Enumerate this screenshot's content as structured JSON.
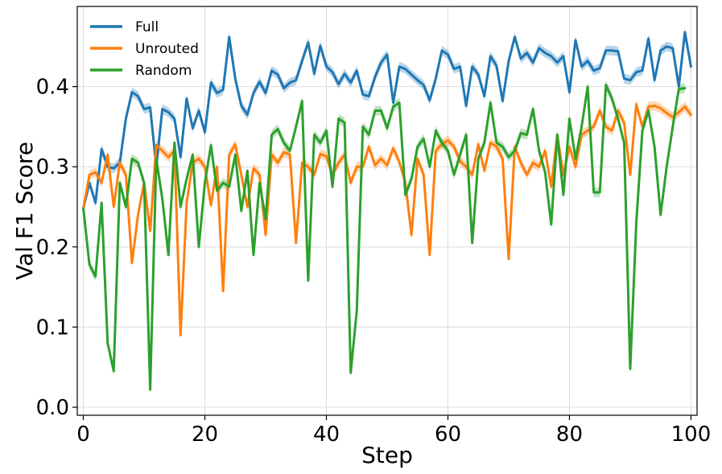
{
  "chart_data": {
    "type": "line",
    "title": "",
    "xlabel": "Step",
    "ylabel": "Val F1 Score",
    "xlim": [
      -1,
      101
    ],
    "ylim": [
      -0.01,
      0.5
    ],
    "x_ticks": [
      0,
      20,
      40,
      60,
      80,
      100
    ],
    "x_tick_labels": [
      "0",
      "20",
      "40",
      "60",
      "80",
      "100"
    ],
    "y_ticks": [
      0.0,
      0.1,
      0.2,
      0.3,
      0.4
    ],
    "y_tick_labels": [
      "0.0",
      "0.1",
      "0.2",
      "0.3",
      "0.4"
    ],
    "grid": true,
    "legend_position": "top-left",
    "band_half_width": 0.006,
    "series": [
      {
        "name": "Full",
        "color": "#1f77b4",
        "values": [
          0.248,
          0.28,
          0.255,
          0.322,
          0.3,
          0.298,
          0.305,
          0.36,
          0.393,
          0.388,
          0.372,
          0.374,
          0.3,
          0.372,
          0.368,
          0.36,
          0.312,
          0.385,
          0.348,
          0.37,
          0.343,
          0.405,
          0.392,
          0.396,
          0.462,
          0.41,
          0.376,
          0.365,
          0.392,
          0.406,
          0.392,
          0.42,
          0.415,
          0.398,
          0.405,
          0.408,
          0.432,
          0.455,
          0.416,
          0.451,
          0.425,
          0.418,
          0.403,
          0.416,
          0.405,
          0.42,
          0.39,
          0.388,
          0.412,
          0.43,
          0.44,
          0.38,
          0.425,
          0.422,
          0.415,
          0.408,
          0.402,
          0.383,
          0.41,
          0.445,
          0.44,
          0.422,
          0.425,
          0.376,
          0.425,
          0.415,
          0.388,
          0.438,
          0.426,
          0.382,
          0.432,
          0.462,
          0.435,
          0.442,
          0.43,
          0.448,
          0.442,
          0.438,
          0.43,
          0.438,
          0.393,
          0.458,
          0.425,
          0.432,
          0.42,
          0.423,
          0.445,
          0.445,
          0.444,
          0.41,
          0.408,
          0.418,
          0.42,
          0.46,
          0.408,
          0.445,
          0.45,
          0.448,
          0.4,
          0.468,
          0.425
        ]
      },
      {
        "name": "Unrouted",
        "color": "#ff7f0e",
        "values": [
          0.248,
          0.29,
          0.293,
          0.28,
          0.315,
          0.25,
          0.305,
          0.29,
          0.18,
          0.24,
          0.28,
          0.22,
          0.327,
          0.32,
          0.312,
          0.32,
          0.09,
          0.255,
          0.305,
          0.31,
          0.3,
          0.252,
          0.3,
          0.145,
          0.315,
          0.328,
          0.29,
          0.25,
          0.298,
          0.29,
          0.215,
          0.315,
          0.305,
          0.318,
          0.315,
          0.205,
          0.305,
          0.3,
          0.29,
          0.316,
          0.313,
          0.29,
          0.305,
          0.315,
          0.28,
          0.3,
          0.3,
          0.325,
          0.302,
          0.31,
          0.302,
          0.323,
          0.306,
          0.28,
          0.215,
          0.31,
          0.29,
          0.19,
          0.32,
          0.328,
          0.333,
          0.325,
          0.307,
          0.3,
          0.29,
          0.328,
          0.295,
          0.33,
          0.325,
          0.31,
          0.185,
          0.325,
          0.305,
          0.29,
          0.305,
          0.3,
          0.32,
          0.275,
          0.34,
          0.29,
          0.325,
          0.3,
          0.34,
          0.345,
          0.35,
          0.37,
          0.35,
          0.345,
          0.37,
          0.355,
          0.29,
          0.378,
          0.35,
          0.375,
          0.376,
          0.373,
          0.367,
          0.362,
          0.368,
          0.375,
          0.365
        ]
      },
      {
        "name": "Random",
        "color": "#2ca02c",
        "values": [
          0.248,
          0.178,
          0.163,
          0.255,
          0.08,
          0.045,
          0.28,
          0.25,
          0.31,
          0.305,
          0.28,
          0.022,
          0.31,
          0.26,
          0.19,
          0.33,
          0.25,
          0.285,
          0.315,
          0.2,
          0.28,
          0.327,
          0.27,
          0.28,
          0.275,
          0.315,
          0.245,
          0.295,
          0.19,
          0.28,
          0.235,
          0.34,
          0.347,
          0.33,
          0.32,
          0.35,
          0.382,
          0.158,
          0.34,
          0.33,
          0.345,
          0.275,
          0.36,
          0.355,
          0.043,
          0.12,
          0.35,
          0.34,
          0.37,
          0.37,
          0.348,
          0.375,
          0.38,
          0.265,
          0.285,
          0.325,
          0.335,
          0.3,
          0.345,
          0.33,
          0.32,
          0.29,
          0.315,
          0.34,
          0.205,
          0.31,
          0.33,
          0.38,
          0.33,
          0.325,
          0.312,
          0.32,
          0.342,
          0.34,
          0.372,
          0.32,
          0.293,
          0.228,
          0.34,
          0.265,
          0.36,
          0.31,
          0.35,
          0.4,
          0.268,
          0.268,
          0.402,
          0.385,
          0.36,
          0.33,
          0.048,
          0.23,
          0.345,
          0.37,
          0.325,
          0.24,
          0.3,
          0.35,
          0.397,
          0.398
        ]
      }
    ]
  }
}
